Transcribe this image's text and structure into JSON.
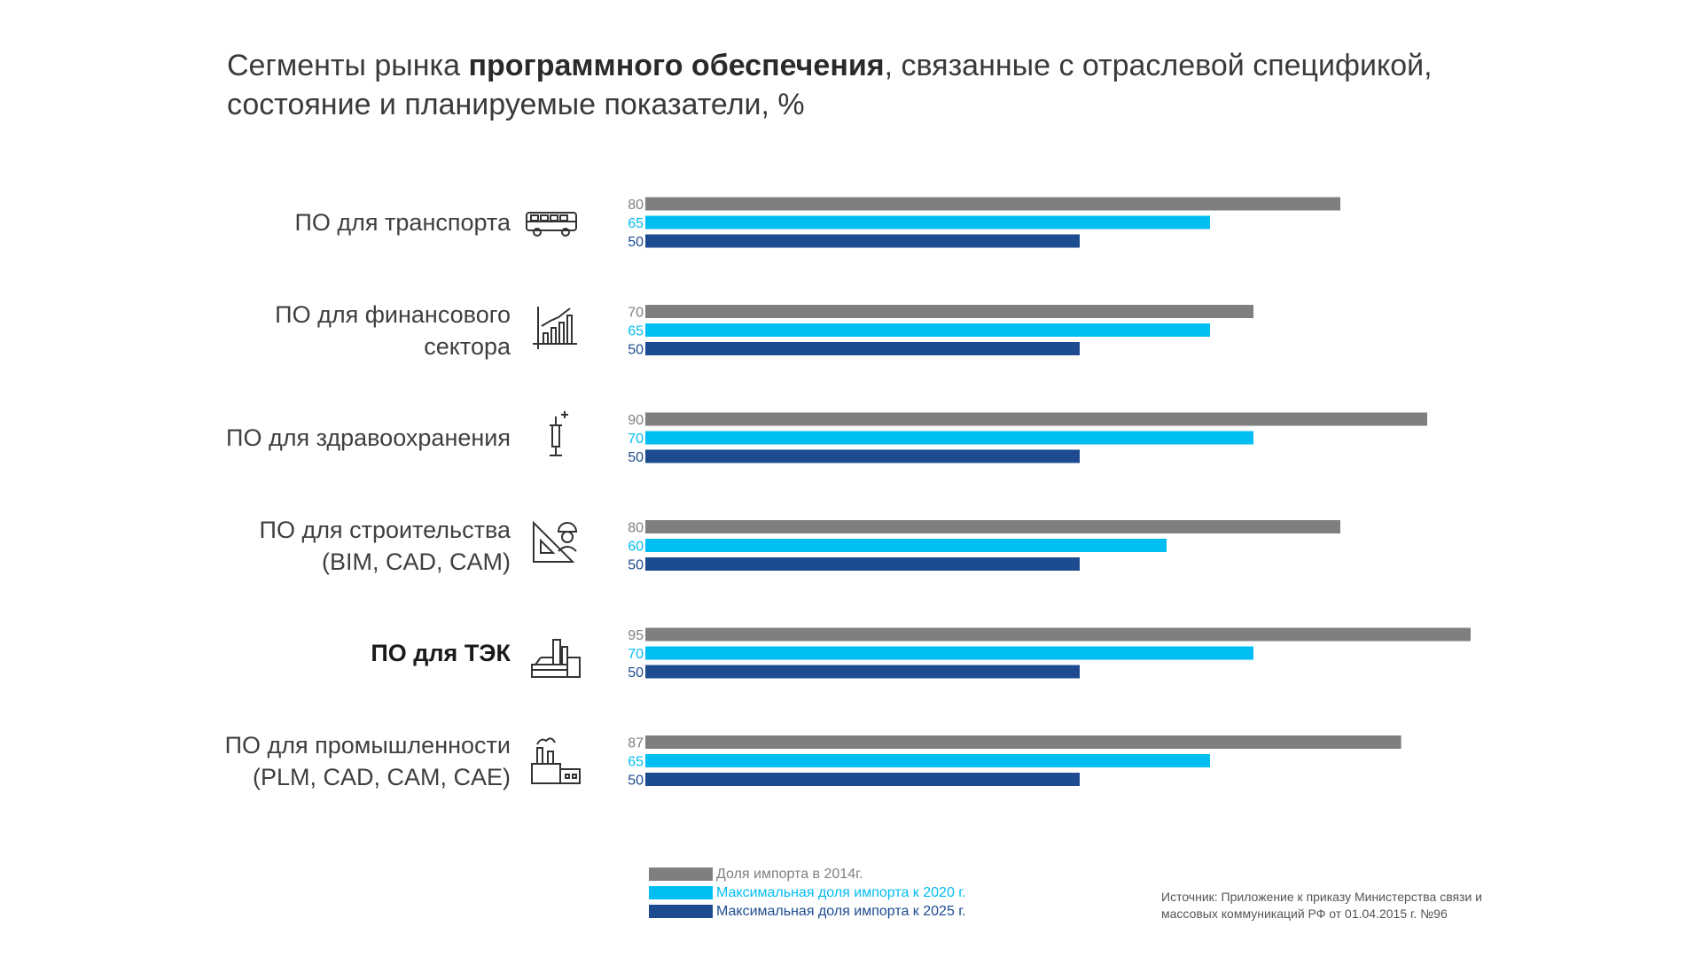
{
  "title": {
    "part1": "Сегменты рынка ",
    "bold": "программного обеспечения",
    "part2": ", связанные с отраслевой спецификой,",
    "line2": "состояние и планируемые показатели, %"
  },
  "colors": {
    "gray": "#7f7f81",
    "cyan": "#00bdf2",
    "navy": "#1c4b8f"
  },
  "chart_data": {
    "type": "bar",
    "orientation": "horizontal",
    "title": "Сегменты рынка программного обеспечения, связанные с отраслевой спецификой, состояние и планируемые показатели, %",
    "xlabel": "",
    "ylabel": "",
    "xlim": [
      0,
      100
    ],
    "categories": [
      {
        "lines": [
          "ПО для транспорта"
        ],
        "icon": "bus-icon",
        "bold": false
      },
      {
        "lines": [
          "ПО для финансового",
          "сектора"
        ],
        "icon": "growth-chart-icon",
        "bold": false
      },
      {
        "lines": [
          "ПО для здравоохранения"
        ],
        "icon": "syringe-icon",
        "bold": false
      },
      {
        "lines": [
          "ПО для строительства",
          "(BIM, CAD, CAM)"
        ],
        "icon": "engineer-icon",
        "bold": false
      },
      {
        "lines": [
          "ПО для ТЭК"
        ],
        "icon": "power-plant-icon",
        "bold": true
      },
      {
        "lines": [
          "ПО для промышленности",
          "(PLM, CAD, CAM, CAE)"
        ],
        "icon": "factory-icon",
        "bold": false
      }
    ],
    "series": [
      {
        "name": "Доля импорта в 2014г.",
        "color": "#7f7f81",
        "values": [
          80,
          70,
          90,
          80,
          95,
          87
        ]
      },
      {
        "name": "Максимальная доля импорта к 2020 г.",
        "color": "#00bdf2",
        "values": [
          65,
          65,
          70,
          60,
          70,
          65
        ]
      },
      {
        "name": "Максимальная доля импорта к 2025 г.",
        "color": "#1c4b8f",
        "values": [
          50,
          50,
          50,
          50,
          50,
          50
        ]
      }
    ],
    "legend_position": "bottom"
  },
  "source": {
    "line1": "Источник: Приложение к приказу Министерства связи и",
    "line2": "массовых коммуникаций РФ от 01.04.2015 г. №96"
  }
}
